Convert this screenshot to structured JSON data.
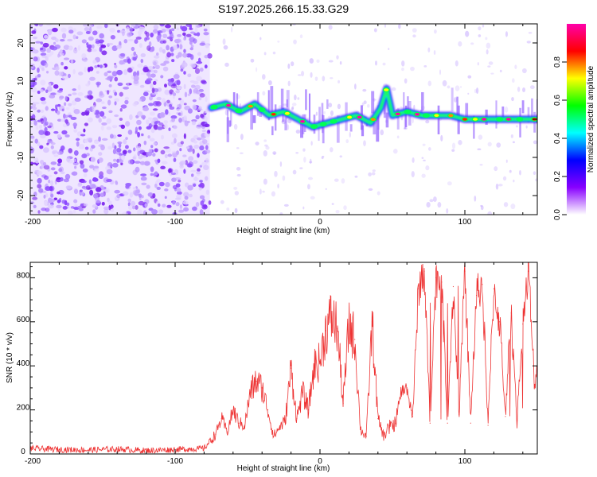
{
  "title": "S197.2025.266.15.33.G29",
  "chart_data": [
    {
      "type": "heatmap",
      "xlabel": "Height of straight line (km)",
      "ylabel": "Frequency (Hz)",
      "xlim": [
        -200,
        150
      ],
      "ylim": [
        -25,
        25
      ],
      "x_ticks": [
        -200,
        -100,
        0,
        100
      ],
      "y_ticks": [
        20,
        10,
        0,
        -10,
        -20
      ],
      "colorbar": {
        "label": "Normalized spectral amplitude",
        "range": [
          0.0,
          1.0
        ],
        "ticks": [
          0.0,
          0.2,
          0.4,
          0.6,
          0.8
        ],
        "colors": [
          "#ffffff",
          "#8800ff",
          "#0000ff",
          "#00ffff",
          "#00ff00",
          "#ffff00",
          "#ff0000",
          "#ff00aa"
        ]
      },
      "ridge": {
        "x": [
          -75,
          -65,
          -55,
          -45,
          -35,
          -25,
          -15,
          -5,
          5,
          15,
          25,
          35,
          42,
          46,
          50,
          60,
          70,
          80,
          90,
          100,
          110,
          120,
          130,
          140,
          150
        ],
        "y": [
          3,
          4,
          2,
          4,
          1,
          2,
          0,
          -2,
          -1,
          0,
          1,
          -1,
          3,
          8,
          1,
          2,
          1,
          1,
          1,
          0,
          0,
          0,
          0,
          0,
          0
        ]
      },
      "noise_region_x": [
        -200,
        -76
      ]
    },
    {
      "type": "line",
      "xlabel": "Height of straight line (km)",
      "ylabel": "SNR (10 * v/v)",
      "xlim": [
        -200,
        150
      ],
      "ylim": [
        0,
        870
      ],
      "x_ticks": [
        -200,
        -100,
        0,
        100
      ],
      "y_ticks": [
        0,
        200,
        400,
        600,
        800
      ],
      "color": "#ee3333",
      "series": [
        {
          "name": "SNR",
          "x": [
            -200,
            -180,
            -160,
            -140,
            -120,
            -100,
            -80,
            -72,
            -68,
            -64,
            -60,
            -56,
            -52,
            -48,
            -44,
            -40,
            -36,
            -32,
            -28,
            -24,
            -20,
            -16,
            -12,
            -8,
            -4,
            0,
            4,
            8,
            12,
            16,
            20,
            24,
            28,
            32,
            36,
            40,
            44,
            48,
            52,
            56,
            60,
            64,
            68,
            72,
            76,
            80,
            84,
            88,
            92,
            96,
            100,
            104,
            108,
            112,
            116,
            120,
            124,
            128,
            132,
            136,
            140,
            144,
            148,
            150
          ],
          "y": [
            25,
            20,
            18,
            22,
            15,
            20,
            25,
            90,
            160,
            100,
            200,
            140,
            130,
            280,
            330,
            300,
            200,
            80,
            120,
            150,
            390,
            160,
            280,
            200,
            400,
            420,
            560,
            620,
            570,
            230,
            590,
            520,
            110,
            80,
            600,
            160,
            80,
            120,
            140,
            280,
            300,
            170,
            750,
            830,
            140,
            800,
            780,
            140,
            760,
            180,
            830,
            140,
            720,
            770,
            130,
            750,
            600,
            170,
            640,
            150,
            590,
            830,
            300,
            400
          ]
        }
      ]
    }
  ]
}
